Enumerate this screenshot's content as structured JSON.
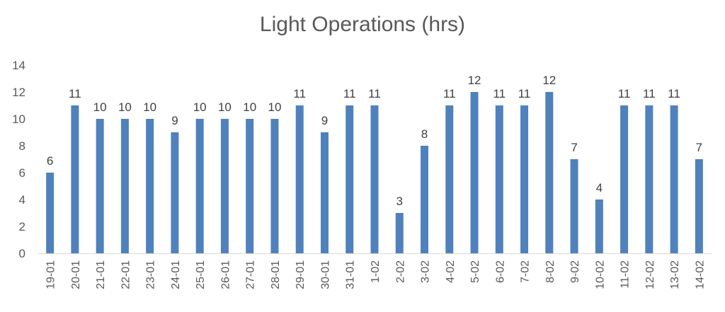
{
  "chart_data": {
    "type": "bar",
    "title": "Light Operations (hrs)",
    "xlabel": "",
    "ylabel": "",
    "ylim": [
      0,
      14
    ],
    "yticks": [
      0,
      2,
      4,
      6,
      8,
      10,
      12,
      14
    ],
    "grid": false,
    "legend": "none",
    "categories": [
      "19-01",
      "20-01",
      "21-01",
      "22-01",
      "23-01",
      "24-01",
      "25-01",
      "26-01",
      "27-01",
      "28-01",
      "29-01",
      "30-01",
      "31-01",
      "1-02",
      "2-02",
      "3-02",
      "4-02",
      "5-02",
      "6-02",
      "7-02",
      "8-02",
      "9-02",
      "10-02",
      "11-02",
      "12-02",
      "13-02",
      "14-02"
    ],
    "values": [
      6,
      11,
      10,
      10,
      10,
      9,
      10,
      10,
      10,
      10,
      11,
      9,
      11,
      11,
      3,
      8,
      11,
      12,
      11,
      11,
      12,
      7,
      4,
      11,
      11,
      11,
      7
    ],
    "bar_color": "#4f81bd",
    "axis_color": "#d9d9d9"
  }
}
